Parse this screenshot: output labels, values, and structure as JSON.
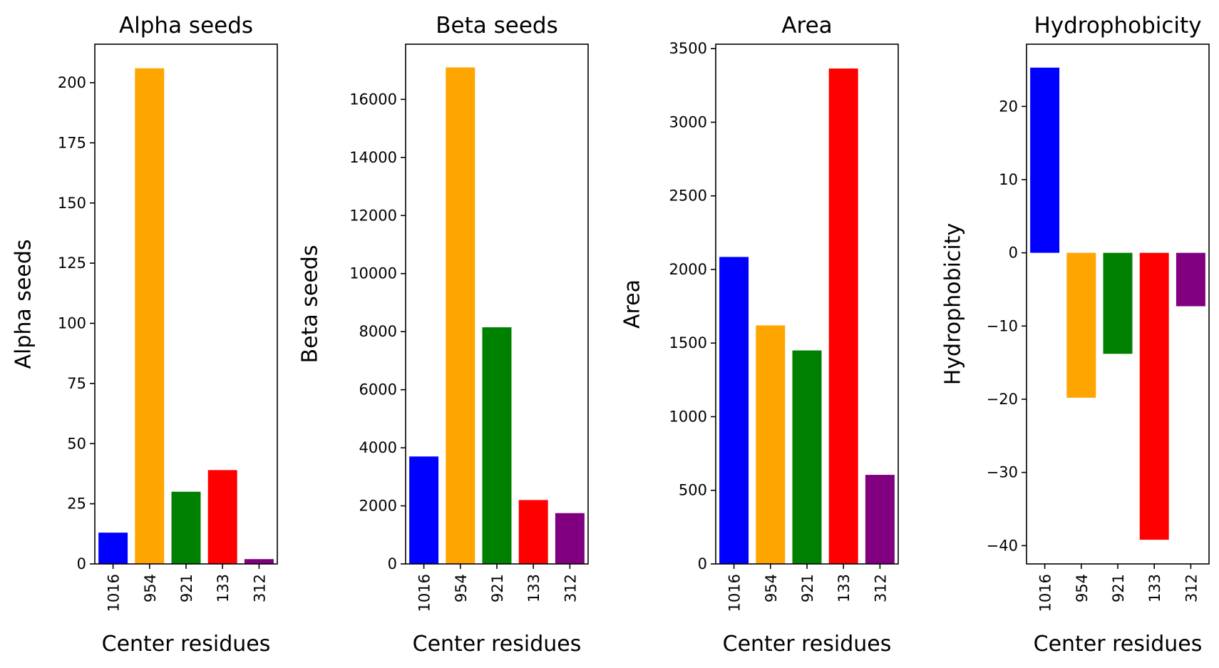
{
  "chart_data": [
    {
      "type": "bar",
      "title": "Alpha seeds",
      "xlabel": "Center residues",
      "ylabel": "Alpha seeds",
      "categories": [
        "1016",
        "954",
        "921",
        "133",
        "312"
      ],
      "values": [
        13,
        206,
        30,
        39,
        2
      ],
      "colors": [
        "#0000ff",
        "#ffa500",
        "#008000",
        "#ff0000",
        "#800080"
      ],
      "ylim": [
        0,
        216
      ],
      "yticks": [
        0,
        25,
        50,
        75,
        100,
        125,
        150,
        175,
        200
      ],
      "grid": false
    },
    {
      "type": "bar",
      "title": "Beta seeds",
      "xlabel": "Center residues",
      "ylabel": "Beta seeds",
      "categories": [
        "1016",
        "954",
        "921",
        "133",
        "312"
      ],
      "values": [
        3700,
        17100,
        8150,
        2200,
        1750
      ],
      "colors": [
        "#0000ff",
        "#ffa500",
        "#008000",
        "#ff0000",
        "#800080"
      ],
      "ylim": [
        0,
        17900
      ],
      "yticks": [
        0,
        2000,
        4000,
        6000,
        8000,
        10000,
        12000,
        14000,
        16000
      ],
      "grid": false
    },
    {
      "type": "bar",
      "title": "Area",
      "xlabel": "Center residues",
      "ylabel": "Area",
      "categories": [
        "1016",
        "954",
        "921",
        "133",
        "312"
      ],
      "values": [
        2085,
        1620,
        1450,
        3365,
        605
      ],
      "colors": [
        "#0000ff",
        "#ffa500",
        "#008000",
        "#ff0000",
        "#800080"
      ],
      "ylim": [
        0,
        3530
      ],
      "yticks": [
        0,
        500,
        1000,
        1500,
        2000,
        2500,
        3000,
        3500
      ],
      "grid": false
    },
    {
      "type": "bar",
      "title": "Hydrophobicity",
      "xlabel": "Center residues",
      "ylabel": "Hydrophobicity",
      "categories": [
        "1016",
        "954",
        "921",
        "133",
        "312"
      ],
      "values": [
        25.3,
        -19.8,
        -13.8,
        -39.2,
        -7.3
      ],
      "colors": [
        "#0000ff",
        "#ffa500",
        "#008000",
        "#ff0000",
        "#800080"
      ],
      "ylim": [
        -42.5,
        28.5
      ],
      "yticks": [
        -40,
        -30,
        -20,
        -10,
        0,
        10,
        20
      ],
      "grid": false
    }
  ]
}
